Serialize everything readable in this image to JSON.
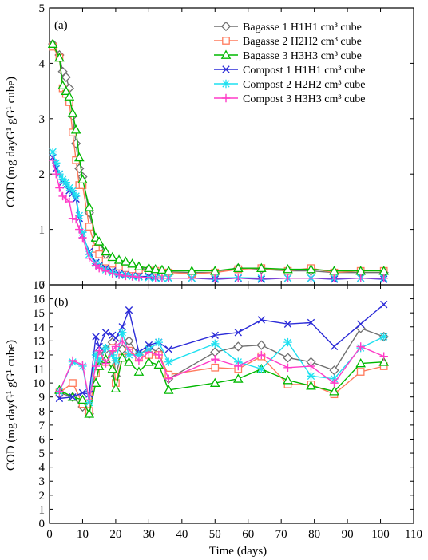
{
  "chart_data": [
    {
      "panel_label": "(a)",
      "type": "line",
      "ylabel": "COD (mg dayG¹ gG¹ cube)",
      "ylim": [
        0,
        5
      ],
      "yticks": [
        0,
        1,
        2,
        3,
        4,
        5
      ],
      "legend": "top-right",
      "series": [
        {
          "name": "Bagasse 1 H1H1 cm³ cube",
          "color": "#707070",
          "marker": "diamond",
          "x": [
            1,
            3,
            4,
            5,
            6,
            7,
            8,
            9,
            10,
            12,
            14,
            15,
            17,
            19,
            21,
            23,
            25,
            27,
            30,
            32,
            34,
            36,
            43,
            50,
            57,
            64,
            72,
            79,
            86,
            94,
            101
          ],
          "y": [
            4.35,
            4.15,
            3.85,
            3.75,
            3.55,
            3.05,
            2.55,
            2.1,
            1.95,
            1.3,
            0.8,
            0.65,
            0.55,
            0.45,
            0.4,
            0.38,
            0.33,
            0.3,
            0.28,
            0.27,
            0.25,
            0.23,
            0.22,
            0.22,
            0.3,
            0.28,
            0.25,
            0.25,
            0.22,
            0.22,
            0.22
          ]
        },
        {
          "name": "Bagasse 2 H2H2 cm³ cube",
          "color": "#ff7a5c",
          "marker": "square",
          "x": [
            1,
            3,
            4,
            5,
            6,
            7,
            8,
            9,
            10,
            12,
            14,
            15,
            17,
            19,
            21,
            23,
            25,
            27,
            30,
            32,
            34,
            36,
            43,
            50,
            57,
            64,
            72,
            79,
            86,
            94,
            101
          ],
          "y": [
            4.3,
            4.1,
            3.55,
            3.45,
            3.3,
            2.75,
            2.25,
            1.8,
            1.8,
            1.05,
            0.65,
            0.55,
            0.42,
            0.38,
            0.33,
            0.3,
            0.28,
            0.27,
            0.25,
            0.25,
            0.22,
            0.22,
            0.2,
            0.22,
            0.28,
            0.3,
            0.25,
            0.3,
            0.22,
            0.25,
            0.25
          ]
        },
        {
          "name": "Bagasse 3 H3H3 cm³ cube",
          "color": "#00b800",
          "marker": "triangle",
          "x": [
            1,
            3,
            4,
            5,
            6,
            7,
            8,
            9,
            10,
            12,
            14,
            15,
            17,
            19,
            21,
            23,
            25,
            27,
            30,
            32,
            34,
            36,
            43,
            50,
            57,
            64,
            72,
            79,
            86,
            94,
            101
          ],
          "y": [
            4.35,
            4.1,
            3.6,
            3.5,
            3.4,
            3.1,
            2.8,
            2.3,
            1.9,
            1.4,
            0.85,
            0.78,
            0.6,
            0.5,
            0.45,
            0.42,
            0.38,
            0.33,
            0.3,
            0.28,
            0.27,
            0.25,
            0.25,
            0.25,
            0.3,
            0.3,
            0.28,
            0.28,
            0.25,
            0.25,
            0.25
          ]
        },
        {
          "name": "Compost 1 H1H1 cm³ cube",
          "color": "#2c2cd8",
          "marker": "x",
          "x": [
            1,
            2,
            3,
            4,
            5,
            6,
            7,
            8,
            9,
            10,
            12,
            14,
            15,
            17,
            19,
            21,
            23,
            25,
            27,
            30,
            32,
            34,
            36,
            43,
            50,
            57,
            64,
            72,
            79,
            86,
            94,
            101
          ],
          "y": [
            2.3,
            2.1,
            2.0,
            1.85,
            1.8,
            1.7,
            1.65,
            1.55,
            1.2,
            0.9,
            0.6,
            0.4,
            0.35,
            0.3,
            0.25,
            0.2,
            0.18,
            0.16,
            0.15,
            0.15,
            0.13,
            0.12,
            0.12,
            0.12,
            0.1,
            0.12,
            0.1,
            0.12,
            0.12,
            0.1,
            0.12,
            0.1
          ]
        },
        {
          "name": "Compost 2 H2H2 cm³ cube",
          "color": "#1ee0f0",
          "marker": "asterisk",
          "x": [
            1,
            2,
            3,
            4,
            5,
            6,
            7,
            8,
            9,
            10,
            12,
            14,
            15,
            17,
            19,
            21,
            23,
            25,
            27,
            30,
            32,
            34,
            36,
            43,
            50,
            57,
            64,
            72,
            79,
            86,
            94,
            101
          ],
          "y": [
            2.4,
            2.2,
            2.0,
            1.9,
            1.85,
            1.75,
            1.7,
            1.6,
            1.25,
            0.95,
            0.55,
            0.38,
            0.33,
            0.27,
            0.22,
            0.18,
            0.17,
            0.15,
            0.14,
            0.13,
            0.12,
            0.12,
            0.12,
            0.12,
            0.12,
            0.13,
            0.12,
            0.12,
            0.12,
            0.12,
            0.12,
            0.12
          ]
        },
        {
          "name": "Compost 3 H3H3 cm³ cube",
          "color": "#ff3cc8",
          "marker": "plus",
          "x": [
            1,
            2,
            3,
            4,
            5,
            6,
            7,
            8,
            9,
            10,
            12,
            14,
            15,
            17,
            19,
            21,
            23,
            25,
            27,
            30,
            32,
            34,
            36,
            43,
            50,
            57,
            64,
            72,
            79,
            86,
            94,
            101
          ],
          "y": [
            2.25,
            2.0,
            1.75,
            1.6,
            1.55,
            1.5,
            1.2,
            1.18,
            1.0,
            0.85,
            0.48,
            0.35,
            0.3,
            0.25,
            0.2,
            0.18,
            0.16,
            0.15,
            0.14,
            0.13,
            0.12,
            0.12,
            0.12,
            0.12,
            0.12,
            0.12,
            0.12,
            0.12,
            0.12,
            0.12,
            0.12,
            0.12
          ]
        }
      ]
    },
    {
      "panel_label": "(b)",
      "type": "line",
      "xlabel": "Time (days)",
      "ylabel": "COD (mg dayG¹ gG¹ cube)",
      "xlim": [
        0,
        110
      ],
      "xticks": [
        0,
        10,
        20,
        30,
        40,
        50,
        60,
        70,
        80,
        90,
        100,
        110
      ],
      "ylim": [
        0,
        17
      ],
      "yticks": [
        0,
        1,
        2,
        3,
        4,
        5,
        6,
        7,
        8,
        9,
        10,
        11,
        12,
        13,
        14,
        15,
        16,
        17
      ],
      "series": [
        {
          "name": "Bagasse 1 H1H1 cm³ cube",
          "color": "#707070",
          "marker": "diamond",
          "x": [
            3,
            7,
            10,
            12,
            14,
            15,
            17,
            19,
            20,
            22,
            24,
            27,
            30,
            33,
            36,
            50,
            57,
            64,
            72,
            79,
            86,
            94,
            101
          ],
          "y": [
            9.3,
            9.0,
            8.3,
            7.8,
            11.0,
            12.0,
            12.4,
            12.9,
            10.5,
            12.4,
            13.0,
            12.0,
            12.5,
            12.2,
            10.3,
            12.2,
            12.6,
            12.7,
            11.8,
            11.5,
            10.9,
            13.9,
            13.3
          ]
        },
        {
          "name": "Bagasse 2 H2H2 cm³ cube",
          "color": "#ff7a5c",
          "marker": "square",
          "x": [
            3,
            7,
            10,
            12,
            14,
            15,
            17,
            19,
            20,
            22,
            24,
            27,
            30,
            33,
            36,
            50,
            57,
            64,
            72,
            79,
            86,
            94,
            101
          ],
          "y": [
            9.3,
            10.0,
            8.5,
            8.0,
            10.7,
            11.8,
            11.5,
            12.5,
            10.0,
            11.8,
            12.3,
            11.8,
            12.0,
            12.0,
            10.6,
            11.1,
            11.0,
            11.9,
            9.9,
            9.9,
            9.2,
            10.8,
            11.2
          ]
        },
        {
          "name": "Bagasse 3 H3H3 cm³ cube",
          "color": "#00b800",
          "marker": "triangle",
          "x": [
            3,
            7,
            10,
            12,
            14,
            15,
            17,
            19,
            20,
            22,
            24,
            27,
            30,
            33,
            36,
            50,
            57,
            64,
            72,
            79,
            86,
            94,
            101
          ],
          "y": [
            9.5,
            9.0,
            8.8,
            7.8,
            10.0,
            11.2,
            11.7,
            11.0,
            9.6,
            11.8,
            11.5,
            10.8,
            11.5,
            11.3,
            9.5,
            10.0,
            10.3,
            11.0,
            10.2,
            9.8,
            9.4,
            11.4,
            11.5
          ]
        },
        {
          "name": "Compost 1 H1H1 cm³ cube",
          "color": "#2c2cd8",
          "marker": "x",
          "x": [
            3,
            7,
            10,
            12,
            14,
            15,
            17,
            19,
            20,
            22,
            24,
            27,
            30,
            33,
            36,
            50,
            57,
            64,
            72,
            79,
            86,
            94,
            101
          ],
          "y": [
            8.9,
            9.0,
            9.3,
            9.2,
            13.3,
            12.6,
            13.6,
            13.4,
            13.2,
            14.0,
            15.2,
            12.2,
            12.7,
            12.9,
            12.4,
            13.4,
            13.6,
            14.5,
            14.2,
            14.3,
            12.6,
            14.2,
            15.6
          ]
        },
        {
          "name": "Compost 2 H2H2 cm³ cube",
          "color": "#1ee0f0",
          "marker": "asterisk",
          "x": [
            3,
            7,
            10,
            12,
            14,
            15,
            17,
            19,
            20,
            22,
            24,
            27,
            30,
            33,
            36,
            50,
            57,
            64,
            72,
            79,
            86,
            94,
            101
          ],
          "y": [
            9.4,
            11.5,
            11.2,
            8.6,
            12.0,
            11.6,
            12.5,
            12.0,
            11.6,
            13.6,
            12.0,
            12.0,
            12.4,
            12.9,
            11.5,
            12.8,
            11.5,
            11.0,
            12.9,
            10.5,
            10.3,
            12.5,
            13.3
          ]
        },
        {
          "name": "Compost 3 H3H3 cm³ cube",
          "color": "#ff3cc8",
          "marker": "plus",
          "x": [
            3,
            7,
            10,
            12,
            14,
            15,
            17,
            19,
            20,
            22,
            24,
            27,
            30,
            33,
            36,
            50,
            57,
            64,
            72,
            79,
            86,
            94,
            101
          ],
          "y": [
            9.4,
            11.6,
            11.3,
            8.8,
            11.2,
            12.3,
            11.4,
            12.3,
            12.6,
            13.0,
            12.4,
            11.6,
            12.2,
            12.0,
            10.3,
            11.7,
            11.2,
            12.0,
            11.1,
            11.2,
            10.0,
            12.6,
            11.9
          ]
        }
      ]
    }
  ]
}
